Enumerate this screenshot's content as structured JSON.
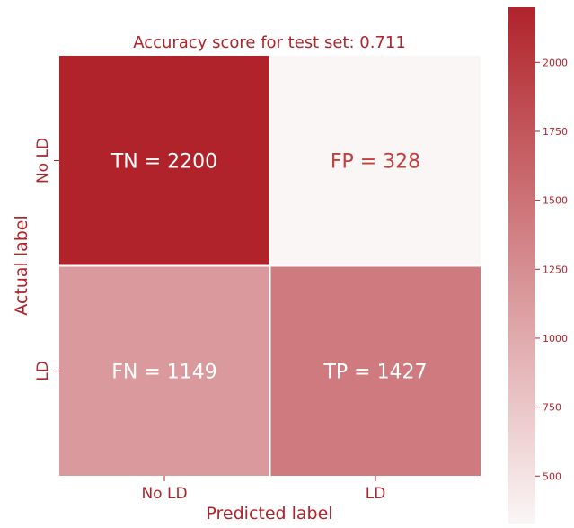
{
  "chart_data": {
    "type": "heatmap",
    "title": "Accuracy score for test set: 0.711",
    "xlabel": "Predicted label",
    "ylabel": "Actual label",
    "x_categories": [
      "No LD",
      "LD"
    ],
    "y_categories": [
      "No LD",
      "LD"
    ],
    "cells": [
      {
        "row": 0,
        "col": 0,
        "value": 2200,
        "label": "TN = 2200"
      },
      {
        "row": 0,
        "col": 1,
        "value": 328,
        "label": "FP = 328"
      },
      {
        "row": 1,
        "col": 0,
        "value": 1149,
        "label": "FN = 1149"
      },
      {
        "row": 1,
        "col": 1,
        "value": 1427,
        "label": "TP = 1427"
      }
    ],
    "colorbar": {
      "range": [
        328,
        2200
      ],
      "ticks": [
        500,
        750,
        1000,
        1250,
        1500,
        1750,
        2000
      ],
      "low_color": "#fbf6f6",
      "high_color": "#b0232a"
    },
    "colors": {
      "text_accent": "#b0232a",
      "cell_text_dark_bg": "#ffffff",
      "cell_text_light_bg": "#c0403f"
    }
  }
}
